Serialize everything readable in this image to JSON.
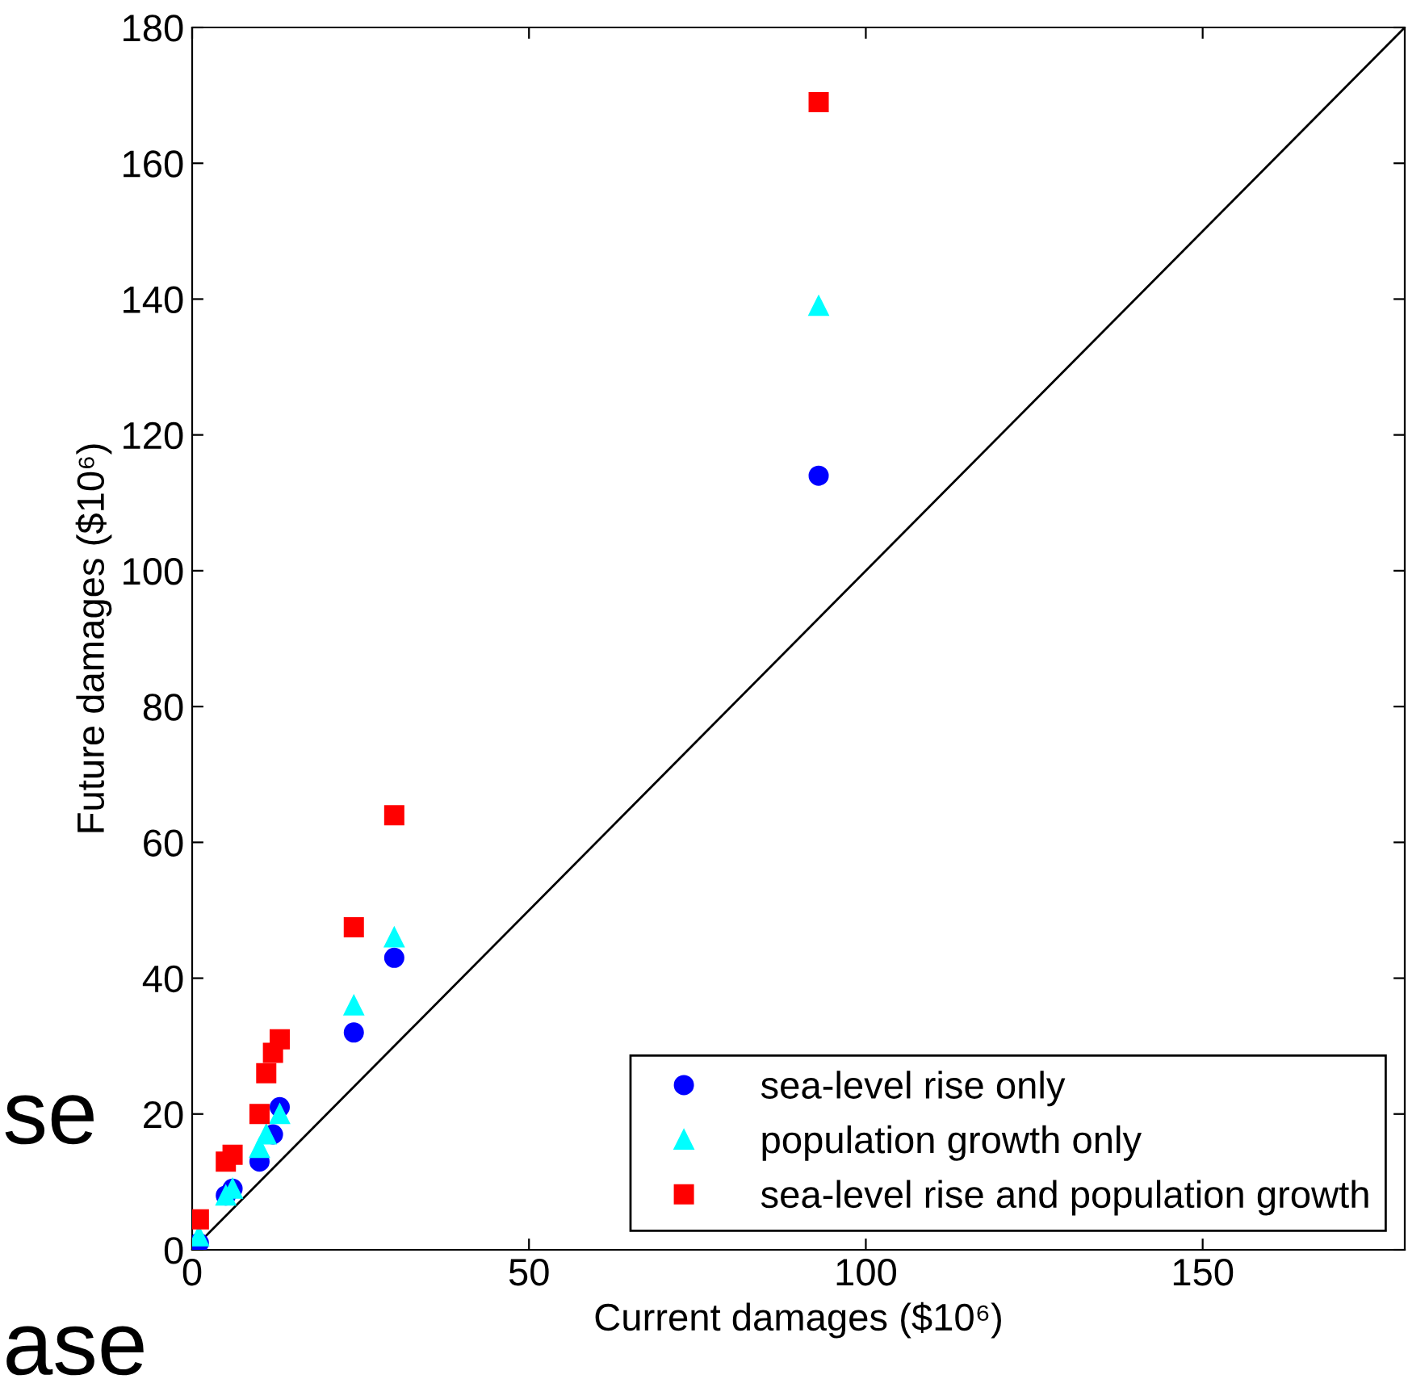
{
  "chart_data": {
    "type": "scatter",
    "xlabel": "Current damages ($10⁶)",
    "ylabel": "Future damages ($10⁶)",
    "xlim": [
      0,
      180
    ],
    "ylim": [
      0,
      180
    ],
    "xticks": [
      0,
      50,
      100,
      150
    ],
    "yticks": [
      0,
      20,
      40,
      60,
      80,
      100,
      120,
      140,
      160,
      180
    ],
    "grid": false,
    "legend": "bottom right",
    "series": [
      {
        "type": "line",
        "color": "#000000",
        "marker": "none",
        "x": [
          0,
          180
        ],
        "values": [
          0,
          180
        ]
      },
      {
        "name": "sea-level rise only",
        "color": "#0000ff",
        "marker": "circle",
        "x": [
          93,
          30,
          24,
          13,
          12,
          10,
          6,
          5,
          1
        ],
        "values": [
          114,
          43,
          32,
          21,
          17,
          13,
          9,
          8,
          1
        ]
      },
      {
        "name": "population growth only",
        "color": "#00ffff",
        "marker": "triangle",
        "x": [
          93,
          30,
          24,
          13,
          11,
          10,
          6,
          5,
          1
        ],
        "values": [
          139,
          46,
          36,
          20,
          17,
          15,
          9,
          8,
          2
        ]
      },
      {
        "name": "sea-level rise and population growth",
        "color": "#ff0000",
        "marker": "square",
        "x": [
          93,
          30,
          24,
          13,
          12,
          11,
          10,
          6,
          5,
          1
        ],
        "values": [
          169,
          64,
          47.5,
          31,
          29,
          26,
          20,
          14,
          13,
          4.5
        ]
      }
    ],
    "annotations": [
      "se",
      "ase"
    ]
  }
}
